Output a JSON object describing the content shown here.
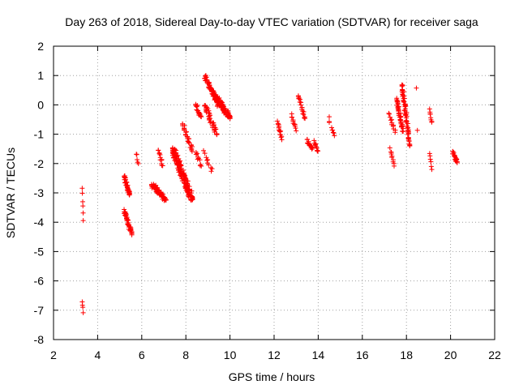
{
  "chart_data": {
    "type": "scatter",
    "title": "Day 263 of 2018, Sidereal Day-to-day VTEC variation (SDTVAR) for receiver saga",
    "xlabel": "GPS time / hours",
    "ylabel": "SDTVAR / TECUs",
    "xlim": [
      2,
      22
    ],
    "ylim": [
      -8,
      2
    ],
    "xticks": [
      2,
      4,
      6,
      8,
      10,
      12,
      14,
      16,
      18,
      20,
      22
    ],
    "yticks": [
      -8,
      -7,
      -6,
      -5,
      -4,
      -3,
      -2,
      -1,
      0,
      1,
      2
    ],
    "grid": true,
    "marker": "+",
    "color": "#ff0000",
    "clusters": [
      {
        "x": [
          3.3,
          3.35
        ],
        "y": [
          -2.85,
          -3.9
        ],
        "n": 6
      },
      {
        "x": [
          3.3,
          3.35
        ],
        "y": [
          -6.7,
          -7.05
        ],
        "n": 4
      },
      {
        "x": [
          5.2,
          5.45
        ],
        "y": [
          -2.4,
          -3.1
        ],
        "n": 40
      },
      {
        "x": [
          5.2,
          5.55
        ],
        "y": [
          -3.6,
          -4.4
        ],
        "n": 45
      },
      {
        "x": [
          5.75,
          5.85
        ],
        "y": [
          -1.65,
          -2.0
        ],
        "n": 5
      },
      {
        "x": [
          6.45,
          7.1
        ],
        "y": [
          -2.7,
          -3.25
        ],
        "n": 70
      },
      {
        "x": [
          6.75,
          6.95
        ],
        "y": [
          -1.55,
          -2.05
        ],
        "n": 12
      },
      {
        "x": [
          7.4,
          8.3
        ],
        "y": [
          -1.5,
          -3.25
        ],
        "n": 150
      },
      {
        "x": [
          7.85,
          8.3
        ],
        "y": [
          -0.6,
          -1.6
        ],
        "n": 30
      },
      {
        "x": [
          8.45,
          8.7
        ],
        "y": [
          0.0,
          -0.45
        ],
        "n": 20
      },
      {
        "x": [
          8.45,
          8.7
        ],
        "y": [
          -1.6,
          -2.1
        ],
        "n": 10
      },
      {
        "x": [
          8.85,
          9.5
        ],
        "y": [
          0.95,
          0.0
        ],
        "n": 60
      },
      {
        "x": [
          8.85,
          9.4
        ],
        "y": [
          0.0,
          -1.0
        ],
        "n": 40
      },
      {
        "x": [
          9.3,
          10.0
        ],
        "y": [
          0.35,
          -0.45
        ],
        "n": 90
      },
      {
        "x": [
          8.8,
          9.2
        ],
        "y": [
          -1.6,
          -2.3
        ],
        "n": 10
      },
      {
        "x": [
          12.15,
          12.35
        ],
        "y": [
          -0.6,
          -1.15
        ],
        "n": 15
      },
      {
        "x": [
          12.8,
          13.0
        ],
        "y": [
          -0.35,
          -0.85
        ],
        "n": 12
      },
      {
        "x": [
          13.1,
          13.4
        ],
        "y": [
          0.3,
          -0.45
        ],
        "n": 20
      },
      {
        "x": [
          13.5,
          13.75
        ],
        "y": [
          -1.2,
          -1.5
        ],
        "n": 15
      },
      {
        "x": [
          13.8,
          14.0
        ],
        "y": [
          -1.25,
          -1.6
        ],
        "n": 10
      },
      {
        "x": [
          14.5,
          14.5
        ],
        "y": [
          -0.4,
          -0.65
        ],
        "n": 3
      },
      {
        "x": [
          14.6,
          14.75
        ],
        "y": [
          -0.8,
          -1.0
        ],
        "n": 6
      },
      {
        "x": [
          17.2,
          17.5
        ],
        "y": [
          -0.3,
          -0.9
        ],
        "n": 12
      },
      {
        "x": [
          17.25,
          17.45
        ],
        "y": [
          -1.5,
          -2.05
        ],
        "n": 10
      },
      {
        "x": [
          17.55,
          17.85
        ],
        "y": [
          0.2,
          -0.9
        ],
        "n": 40
      },
      {
        "x": [
          17.8,
          18.15
        ],
        "y": [
          0.7,
          -1.4
        ],
        "n": 60
      },
      {
        "x": [
          18.45,
          18.5
        ],
        "y": [
          0.55,
          -0.9
        ],
        "n": 2
      },
      {
        "x": [
          19.05,
          19.15
        ],
        "y": [
          -0.15,
          -0.6
        ],
        "n": 8
      },
      {
        "x": [
          19.05,
          19.15
        ],
        "y": [
          -1.7,
          -2.15
        ],
        "n": 6
      },
      {
        "x": [
          20.1,
          20.3
        ],
        "y": [
          -1.6,
          -1.95
        ],
        "n": 20
      }
    ]
  }
}
